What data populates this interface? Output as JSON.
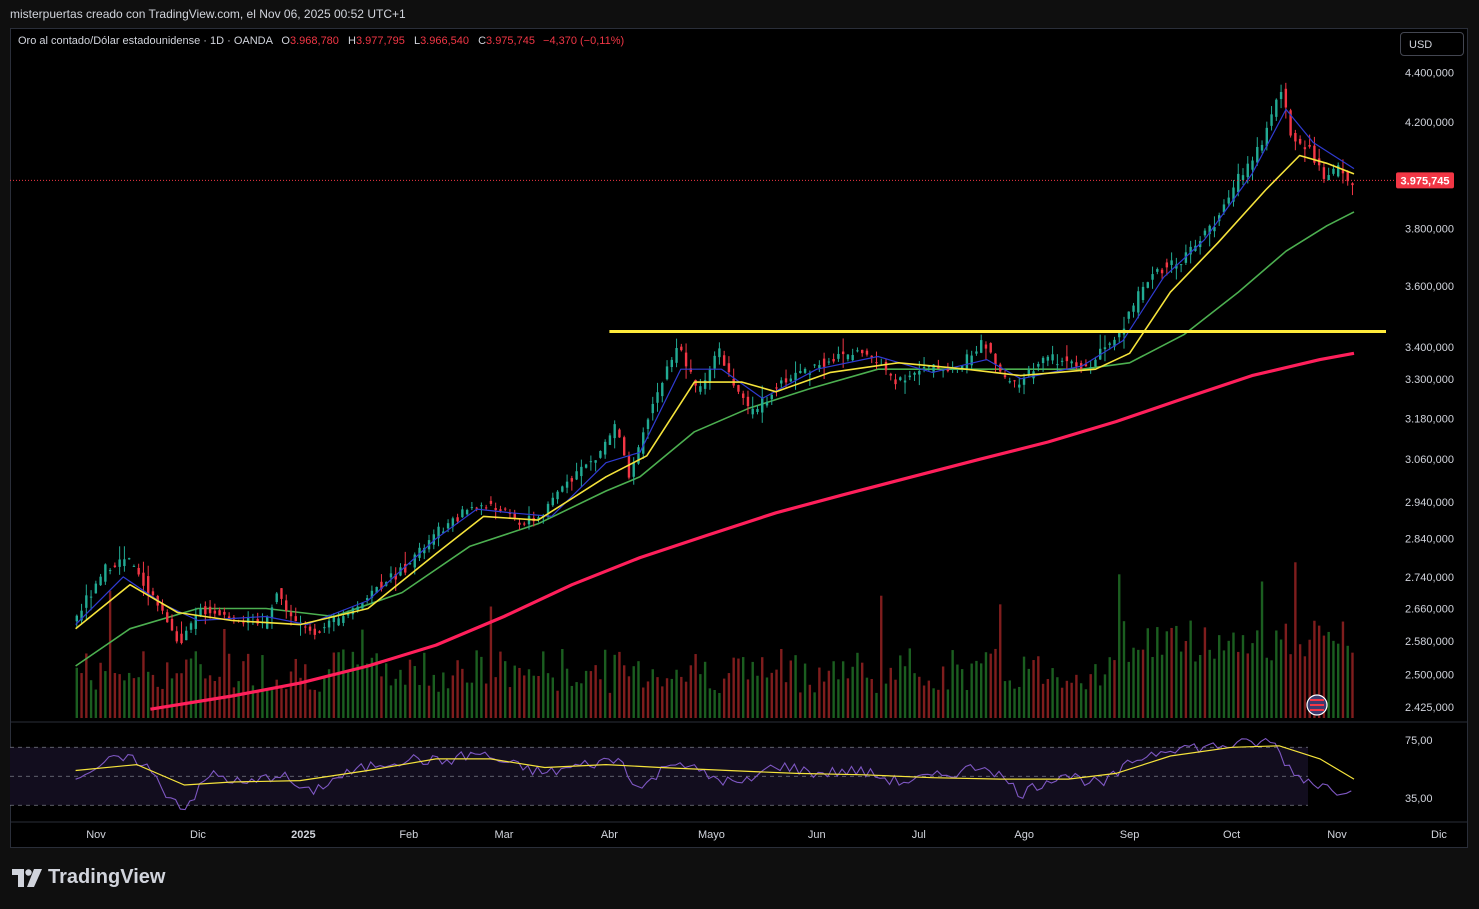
{
  "header": {
    "author_line": "misterpuertas creado con TradingView.com, el Nov 06, 2025 00:52 UTC+1"
  },
  "legend": {
    "symbol": "Oro al contado/Dólar estadounidense · 1D · OANDA",
    "open_label": "O",
    "open": "3.968,780",
    "high_label": "H",
    "high": "3.977,795",
    "low_label": "L",
    "low": "3.966,540",
    "close_label": "C",
    "close": "3.975,745",
    "change": "−4,370 (−0,11%)"
  },
  "currency_button": "USD",
  "brand": {
    "name": "TradingView",
    "logo": "tradingview-logo"
  },
  "colors": {
    "up": "#22ab94",
    "down": "#f23645",
    "ema_fast": "#2f3bd1",
    "ema_mid": "#f5e33b",
    "ema_slow": "#4caf50",
    "ema_long": "#ff1f5b",
    "resistance": "#ffeb3b",
    "rsi": "#7e57c2",
    "rsi_ma": "#f5e33b",
    "volume_up": "#1b5e20",
    "volume_down": "#7f1d1d",
    "price_tag": "#f23645"
  },
  "chart_data": {
    "type": "candlestick",
    "symbol": "XAUUSD",
    "interval": "1D",
    "x_ticks": [
      "Nov",
      "Dic",
      "2025",
      "Feb",
      "Mar",
      "Abr",
      "Mayo",
      "Jun",
      "Jul",
      "Ago",
      "Sep",
      "Oct",
      "Nov",
      "Dic"
    ],
    "x_tick_days": [
      0,
      30,
      61,
      92,
      120,
      151,
      181,
      212,
      242,
      273,
      304,
      334,
      365,
      395
    ],
    "y_ticks": [
      4400,
      4200,
      3800,
      3600,
      3400,
      3300,
      3180,
      3060,
      2940,
      2840,
      2740,
      2660,
      2580,
      2500,
      2425
    ],
    "y_tick_labels": [
      "4.400,000",
      "4.200,000",
      "3.800,000",
      "3.600,000",
      "3.400,000",
      "3.300,000",
      "3.180,000",
      "3.060,000",
      "2.940,000",
      "2.840,000",
      "2.740,000",
      "2.660,000",
      "2.580,000",
      "2.500,000",
      "2.425,000"
    ],
    "price_scale": "log",
    "last_price": 3975.745,
    "last_price_label": "3.975,745",
    "resistance_level": 3450,
    "resistance_start_day": 151,
    "price_path": [
      [
        -6,
        2620
      ],
      [
        4,
        2760
      ],
      [
        10,
        2785
      ],
      [
        18,
        2690
      ],
      [
        26,
        2570
      ],
      [
        32,
        2660
      ],
      [
        40,
        2640
      ],
      [
        50,
        2620
      ],
      [
        54,
        2700
      ],
      [
        60,
        2620
      ],
      [
        66,
        2600
      ],
      [
        74,
        2640
      ],
      [
        82,
        2700
      ],
      [
        92,
        2770
      ],
      [
        102,
        2860
      ],
      [
        112,
        2930
      ],
      [
        120,
        2920
      ],
      [
        126,
        2880
      ],
      [
        132,
        2900
      ],
      [
        140,
        3010
      ],
      [
        148,
        3060
      ],
      [
        154,
        3160
      ],
      [
        158,
        3000
      ],
      [
        164,
        3200
      ],
      [
        172,
        3410
      ],
      [
        178,
        3260
      ],
      [
        184,
        3390
      ],
      [
        190,
        3250
      ],
      [
        194,
        3190
      ],
      [
        202,
        3290
      ],
      [
        212,
        3340
      ],
      [
        220,
        3370
      ],
      [
        226,
        3390
      ],
      [
        236,
        3300
      ],
      [
        246,
        3330
      ],
      [
        256,
        3340
      ],
      [
        262,
        3420
      ],
      [
        268,
        3300
      ],
      [
        272,
        3280
      ],
      [
        280,
        3370
      ],
      [
        292,
        3330
      ],
      [
        300,
        3420
      ],
      [
        306,
        3530
      ],
      [
        312,
        3650
      ],
      [
        320,
        3690
      ],
      [
        326,
        3760
      ],
      [
        332,
        3860
      ],
      [
        338,
        4000
      ],
      [
        344,
        4120
      ],
      [
        350,
        4350
      ],
      [
        352,
        4150
      ],
      [
        358,
        4100
      ],
      [
        362,
        3980
      ],
      [
        366,
        4020
      ],
      [
        370,
        3975
      ]
    ],
    "ema_fast_path": [
      [
        -6,
        2620
      ],
      [
        8,
        2740
      ],
      [
        20,
        2670
      ],
      [
        30,
        2630
      ],
      [
        50,
        2640
      ],
      [
        62,
        2620
      ],
      [
        80,
        2680
      ],
      [
        100,
        2840
      ],
      [
        112,
        2920
      ],
      [
        122,
        2910
      ],
      [
        134,
        2900
      ],
      [
        150,
        3050
      ],
      [
        160,
        3080
      ],
      [
        172,
        3330
      ],
      [
        184,
        3330
      ],
      [
        196,
        3240
      ],
      [
        212,
        3330
      ],
      [
        230,
        3370
      ],
      [
        246,
        3320
      ],
      [
        262,
        3360
      ],
      [
        272,
        3300
      ],
      [
        290,
        3340
      ],
      [
        302,
        3420
      ],
      [
        314,
        3630
      ],
      [
        326,
        3760
      ],
      [
        340,
        4000
      ],
      [
        350,
        4250
      ],
      [
        358,
        4120
      ],
      [
        370,
        4020
      ]
    ],
    "ema_mid_path": [
      [
        -6,
        2610
      ],
      [
        10,
        2720
      ],
      [
        24,
        2650
      ],
      [
        40,
        2630
      ],
      [
        60,
        2620
      ],
      [
        80,
        2660
      ],
      [
        100,
        2800
      ],
      [
        114,
        2900
      ],
      [
        130,
        2890
      ],
      [
        150,
        3010
      ],
      [
        162,
        3070
      ],
      [
        176,
        3290
      ],
      [
        190,
        3290
      ],
      [
        200,
        3260
      ],
      [
        216,
        3320
      ],
      [
        236,
        3350
      ],
      [
        256,
        3330
      ],
      [
        272,
        3310
      ],
      [
        294,
        3330
      ],
      [
        304,
        3380
      ],
      [
        316,
        3580
      ],
      [
        330,
        3750
      ],
      [
        344,
        3940
      ],
      [
        354,
        4070
      ],
      [
        362,
        4040
      ],
      [
        370,
        4000
      ]
    ],
    "ema_slow_path": [
      [
        -6,
        2520
      ],
      [
        10,
        2610
      ],
      [
        30,
        2660
      ],
      [
        50,
        2660
      ],
      [
        70,
        2640
      ],
      [
        90,
        2700
      ],
      [
        110,
        2820
      ],
      [
        130,
        2880
      ],
      [
        150,
        2970
      ],
      [
        160,
        3010
      ],
      [
        176,
        3140
      ],
      [
        192,
        3210
      ],
      [
        210,
        3270
      ],
      [
        230,
        3330
      ],
      [
        250,
        3330
      ],
      [
        270,
        3330
      ],
      [
        290,
        3330
      ],
      [
        304,
        3350
      ],
      [
        320,
        3440
      ],
      [
        336,
        3580
      ],
      [
        350,
        3720
      ],
      [
        362,
        3810
      ],
      [
        370,
        3860
      ]
    ],
    "ema_long_path": [
      [
        16,
        2420
      ],
      [
        40,
        2450
      ],
      [
        60,
        2480
      ],
      [
        80,
        2520
      ],
      [
        100,
        2570
      ],
      [
        120,
        2640
      ],
      [
        140,
        2720
      ],
      [
        160,
        2790
      ],
      [
        180,
        2850
      ],
      [
        200,
        2910
      ],
      [
        220,
        2960
      ],
      [
        240,
        3010
      ],
      [
        260,
        3060
      ],
      [
        280,
        3110
      ],
      [
        300,
        3170
      ],
      [
        320,
        3240
      ],
      [
        340,
        3310
      ],
      [
        360,
        3360
      ],
      [
        370,
        3380
      ]
    ],
    "rsi": {
      "y_ticks": [
        75,
        35
      ],
      "y_tick_labels": [
        "75,00",
        "35,00"
      ],
      "upper_band": 70,
      "lower_band": 30,
      "mid_band": 50,
      "rsi_path": [
        [
          -6,
          50
        ],
        [
          6,
          62
        ],
        [
          14,
          60
        ],
        [
          20,
          40
        ],
        [
          26,
          28
        ],
        [
          34,
          52
        ],
        [
          44,
          44
        ],
        [
          54,
          52
        ],
        [
          62,
          38
        ],
        [
          72,
          50
        ],
        [
          82,
          58
        ],
        [
          92,
          62
        ],
        [
          102,
          60
        ],
        [
          112,
          66
        ],
        [
          122,
          58
        ],
        [
          132,
          52
        ],
        [
          144,
          58
        ],
        [
          154,
          62
        ],
        [
          160,
          40
        ],
        [
          170,
          62
        ],
        [
          180,
          50
        ],
        [
          190,
          44
        ],
        [
          200,
          58
        ],
        [
          212,
          52
        ],
        [
          224,
          54
        ],
        [
          236,
          46
        ],
        [
          248,
          50
        ],
        [
          262,
          58
        ],
        [
          272,
          38
        ],
        [
          284,
          52
        ],
        [
          296,
          44
        ],
        [
          306,
          62
        ],
        [
          316,
          70
        ],
        [
          326,
          70
        ],
        [
          336,
          72
        ],
        [
          346,
          74
        ],
        [
          352,
          52
        ],
        [
          360,
          44
        ],
        [
          366,
          40
        ],
        [
          370,
          44
        ]
      ],
      "rsi_ma_path": [
        [
          -6,
          54
        ],
        [
          12,
          58
        ],
        [
          26,
          44
        ],
        [
          40,
          46
        ],
        [
          60,
          47
        ],
        [
          80,
          54
        ],
        [
          100,
          62
        ],
        [
          116,
          62
        ],
        [
          132,
          56
        ],
        [
          150,
          58
        ],
        [
          166,
          56
        ],
        [
          186,
          54
        ],
        [
          206,
          52
        ],
        [
          226,
          51
        ],
        [
          246,
          49
        ],
        [
          266,
          48
        ],
        [
          286,
          48
        ],
        [
          300,
          52
        ],
        [
          316,
          64
        ],
        [
          334,
          70
        ],
        [
          348,
          71
        ],
        [
          360,
          62
        ],
        [
          370,
          48
        ]
      ]
    }
  }
}
